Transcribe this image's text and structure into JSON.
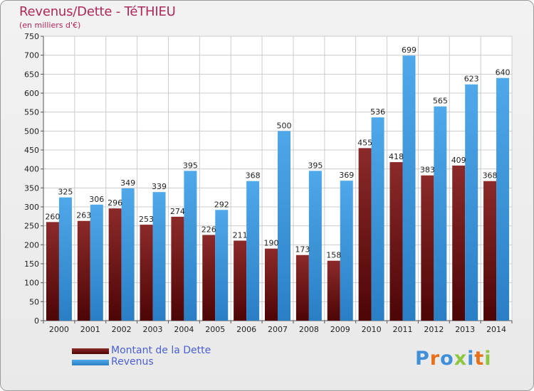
{
  "header": {
    "title": "Revenus/Dette - TéTHIEU",
    "subtitle": "(en milliers d'€)"
  },
  "brand": {
    "logo_text": "Proxiti",
    "letter_colors": [
      "#3f8fd9",
      "#e8701a",
      "#3f8fd9",
      "#8dc63f",
      "#3f8fd9",
      "#e8701a",
      "#8dc63f"
    ]
  },
  "colors": {
    "dette": "#7a1c1c",
    "revenus": "#3f9be0",
    "title": "#b0275a",
    "legend_text": "#4a5fd6"
  },
  "chart_data": {
    "type": "bar",
    "title": "Revenus/Dette - TéTHIEU",
    "subtitle": "(en milliers d'€)",
    "xlabel": "",
    "ylabel": "",
    "ylim": [
      0,
      750
    ],
    "yticks": [
      0,
      50,
      100,
      150,
      200,
      250,
      300,
      350,
      400,
      450,
      500,
      550,
      600,
      650,
      700,
      750
    ],
    "grid": true,
    "legend_position": "bottom-left",
    "categories": [
      "2000",
      "2001",
      "2002",
      "2003",
      "2004",
      "2005",
      "2006",
      "2007",
      "2008",
      "2009",
      "2010",
      "2011",
      "2012",
      "2013",
      "2014"
    ],
    "series": [
      {
        "name": "Montant de la Dette",
        "values": [
          260,
          263,
          296,
          253,
          274,
          226,
          211,
          190,
          173,
          158,
          455,
          418,
          383,
          409,
          368
        ]
      },
      {
        "name": "Revenus",
        "values": [
          325,
          306,
          349,
          339,
          395,
          292,
          368,
          500,
          395,
          369,
          536,
          699,
          565,
          623,
          640
        ]
      }
    ]
  }
}
